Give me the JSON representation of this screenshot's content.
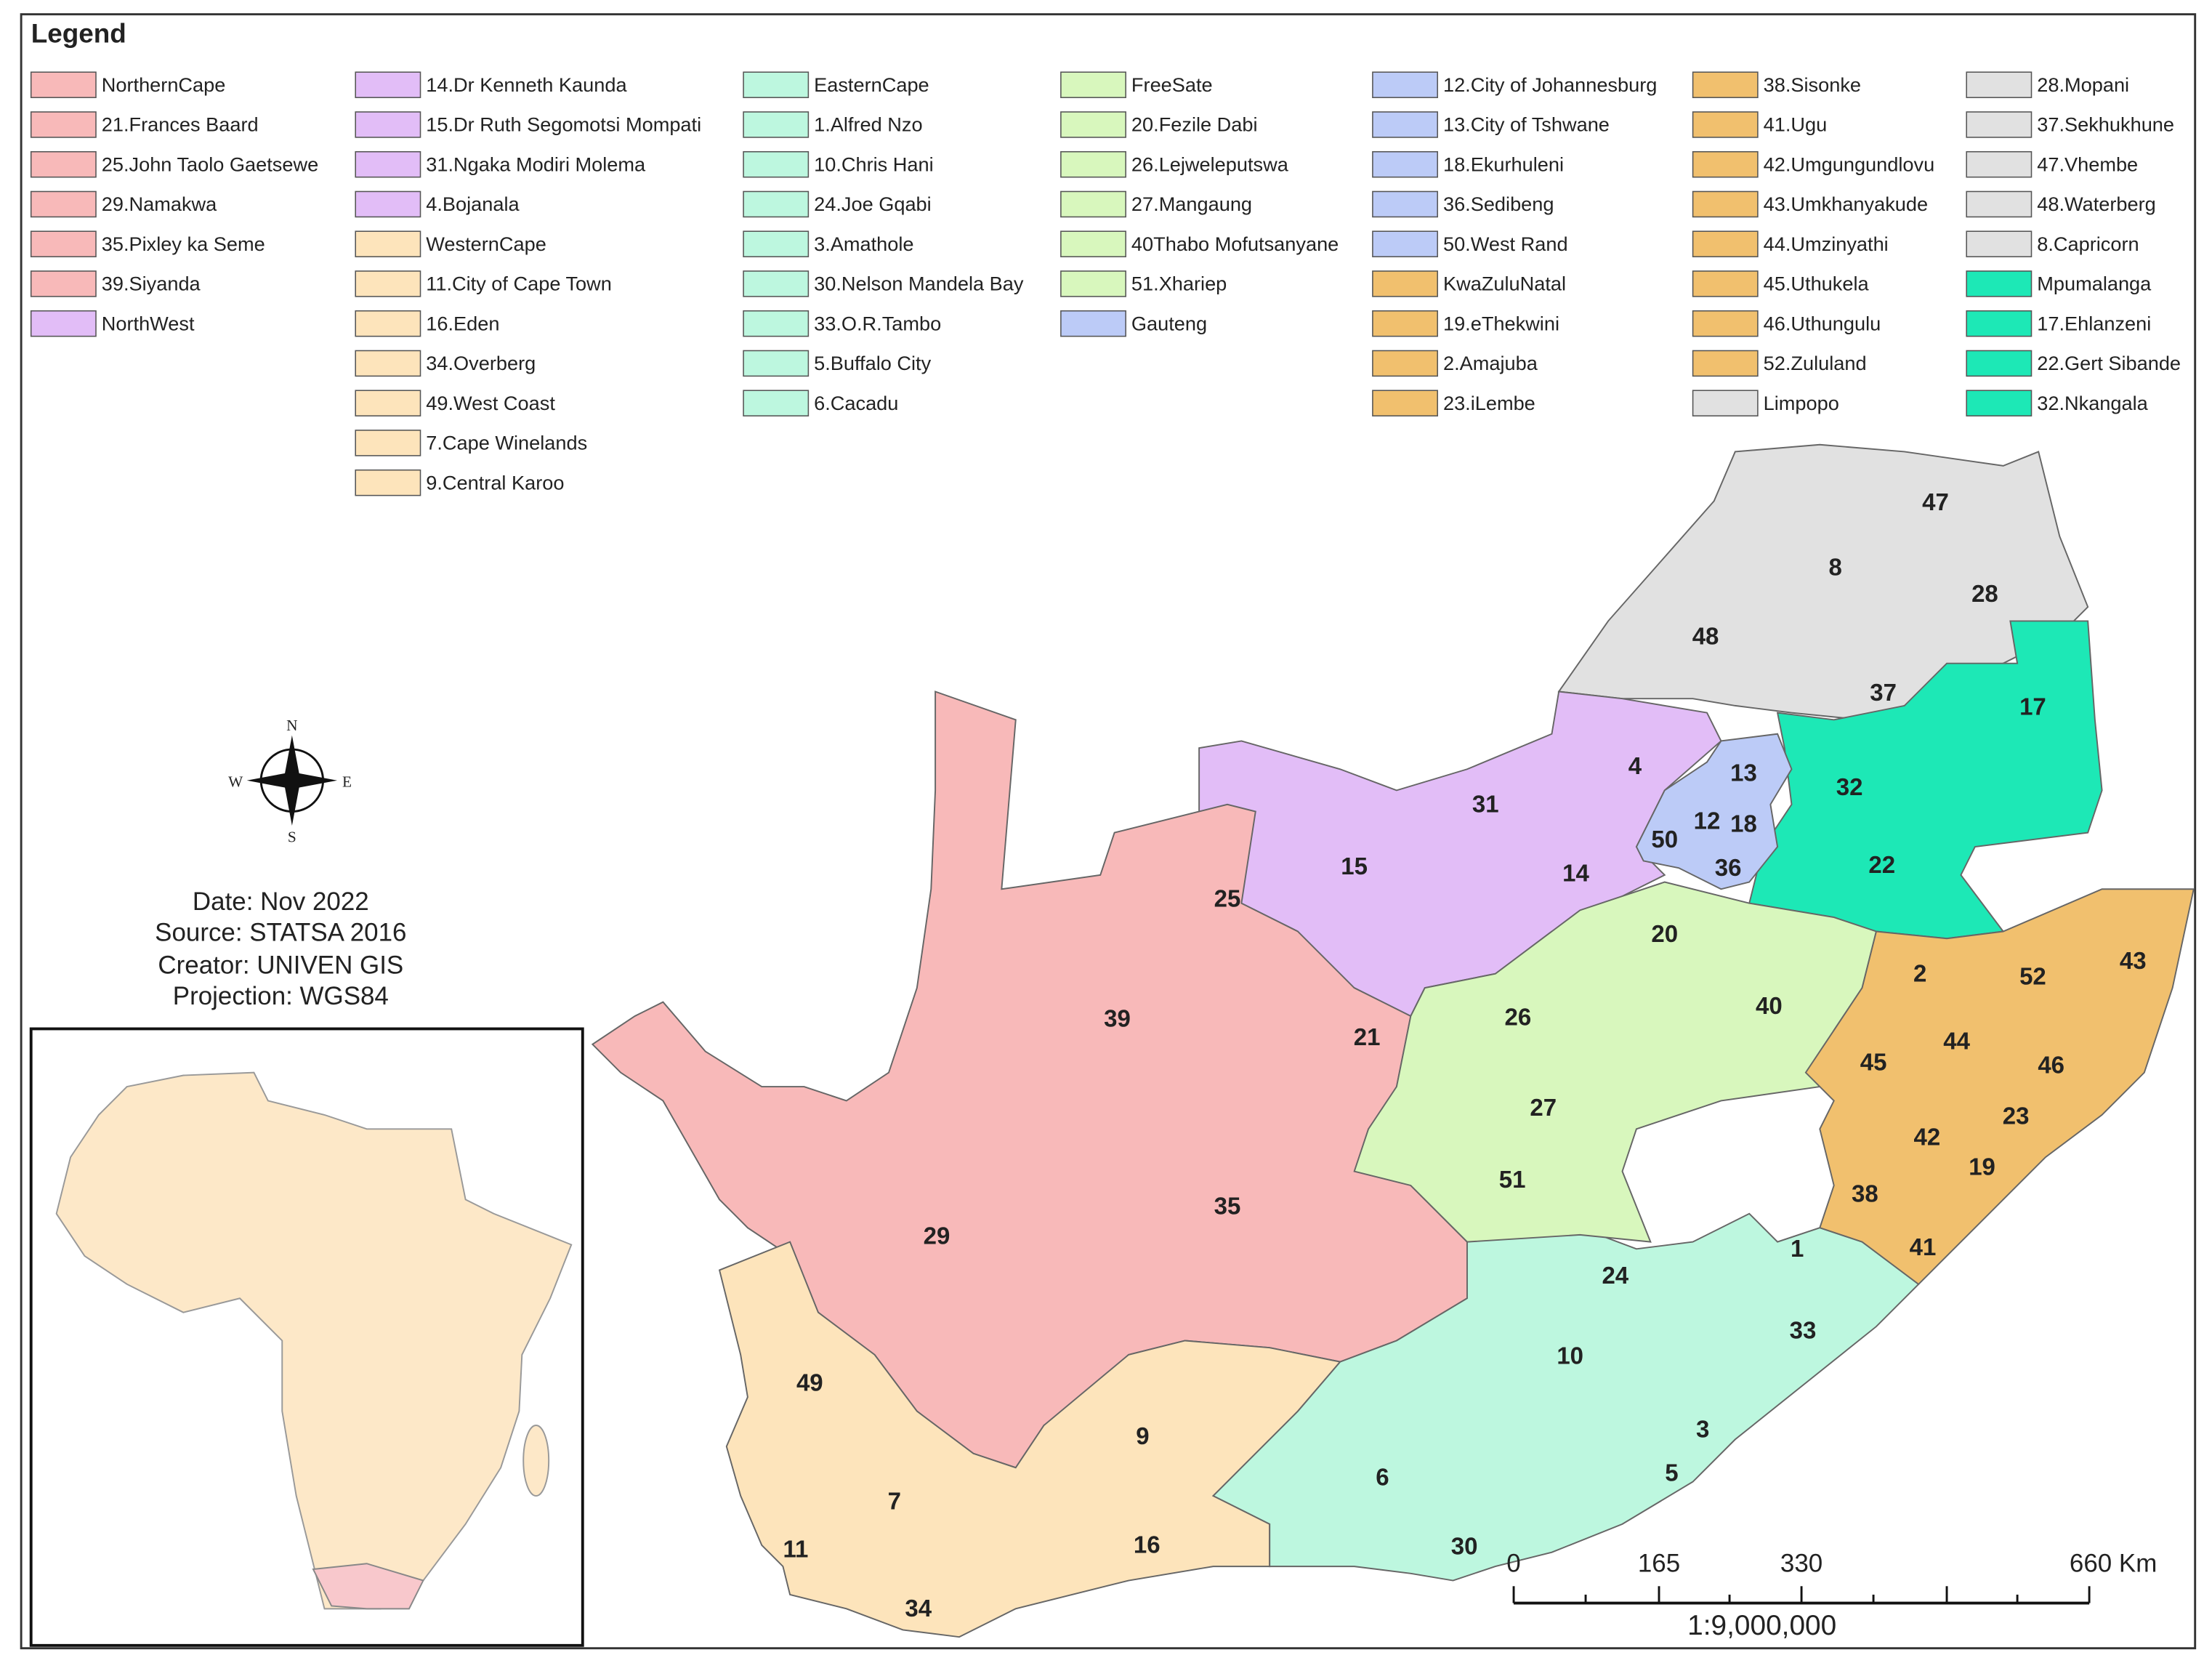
{
  "legend": {
    "title": "Legend",
    "columns": [
      [
        {
          "label": "NorthernCape",
          "color": "#f8b9b9"
        },
        {
          "label": "21.Frances Baard",
          "color": "#f8b9b9"
        },
        {
          "label": "25.John Taolo Gaetsewe",
          "color": "#f8b9b9"
        },
        {
          "label": "29.Namakwa",
          "color": "#f8b9b9"
        },
        {
          "label": "35.Pixley ka Seme",
          "color": "#f8b9b9"
        },
        {
          "label": "39.Siyanda",
          "color": "#f8b9b9"
        },
        {
          "label": "NorthWest",
          "color": "#e2bdf7"
        }
      ],
      [
        {
          "label": "14.Dr Kenneth Kaunda",
          "color": "#e2bdf7"
        },
        {
          "label": "15.Dr Ruth Segomotsi Mompati",
          "color": "#e2bdf7"
        },
        {
          "label": "31.Ngaka Modiri Molema",
          "color": "#e2bdf7"
        },
        {
          "label": "4.Bojanala",
          "color": "#e2bdf7"
        },
        {
          "label": "WesternCape",
          "color": "#fde4bb"
        },
        {
          "label": "11.City of Cape Town",
          "color": "#fde4bb"
        },
        {
          "label": "16.Eden",
          "color": "#fde4bb"
        },
        {
          "label": "34.Overberg",
          "color": "#fde4bb"
        },
        {
          "label": "49.West Coast",
          "color": "#fde4bb"
        },
        {
          "label": "7.Cape Winelands",
          "color": "#fde4bb"
        },
        {
          "label": "9.Central Karoo",
          "color": "#fde4bb"
        }
      ],
      [
        {
          "label": "EasternCape",
          "color": "#bdf7df"
        },
        {
          "label": "1.Alfred Nzo",
          "color": "#bdf7df"
        },
        {
          "label": "10.Chris Hani",
          "color": "#bdf7df"
        },
        {
          "label": "24.Joe Gqabi",
          "color": "#bdf7df"
        },
        {
          "label": "3.Amathole",
          "color": "#bdf7df"
        },
        {
          "label": "30.Nelson Mandela Bay",
          "color": "#bdf7df"
        },
        {
          "label": "33.O.R.Tambo",
          "color": "#bdf7df"
        },
        {
          "label": "5.Buffalo City",
          "color": "#bdf7df"
        },
        {
          "label": "6.Cacadu",
          "color": "#bdf7df"
        }
      ],
      [
        {
          "label": "FreeSate",
          "color": "#d8f7bd"
        },
        {
          "label": "20.Fezile Dabi",
          "color": "#d8f7bd"
        },
        {
          "label": "26.Lejweleputswa",
          "color": "#d8f7bd"
        },
        {
          "label": "27.Mangaung",
          "color": "#d8f7bd"
        },
        {
          "label": "40Thabo Mofutsanyane",
          "color": "#d8f7bd"
        },
        {
          "label": "51.Xhariep",
          "color": "#d8f7bd"
        },
        {
          "label": "Gauteng",
          "color": "#bccbf7"
        }
      ],
      [
        {
          "label": "12.City of Johannesburg",
          "color": "#bccbf7"
        },
        {
          "label": "13.City of Tshwane",
          "color": "#bccbf7"
        },
        {
          "label": "18.Ekurhuleni",
          "color": "#bccbf7"
        },
        {
          "label": "36.Sedibeng",
          "color": "#bccbf7"
        },
        {
          "label": "50.West Rand",
          "color": "#bccbf7"
        },
        {
          "label": "KwaZuluNatal",
          "color": "#f1c06e"
        },
        {
          "label": "19.eThekwini",
          "color": "#f1c06e"
        },
        {
          "label": "2.Amajuba",
          "color": "#f1c06e"
        },
        {
          "label": "23.iLembe",
          "color": "#f1c06e"
        }
      ],
      [
        {
          "label": "38.Sisonke",
          "color": "#f1c06e"
        },
        {
          "label": "41.Ugu",
          "color": "#f1c06e"
        },
        {
          "label": "42.Umgungundlovu",
          "color": "#f1c06e"
        },
        {
          "label": "43.Umkhanyakude",
          "color": "#f1c06e"
        },
        {
          "label": "44.Umzinyathi",
          "color": "#f1c06e"
        },
        {
          "label": "45.Uthukela",
          "color": "#f1c06e"
        },
        {
          "label": "46.Uthungulu",
          "color": "#f1c06e"
        },
        {
          "label": "52.Zululand",
          "color": "#f1c06e"
        },
        {
          "label": "Limpopo",
          "color": "#e1e1e1"
        }
      ],
      [
        {
          "label": "28.Mopani",
          "color": "#e1e1e1"
        },
        {
          "label": "37.Sekhukhune",
          "color": "#e1e1e1"
        },
        {
          "label": "47.Vhembe",
          "color": "#e1e1e1"
        },
        {
          "label": "48.Waterberg",
          "color": "#e1e1e1"
        },
        {
          "label": "8.Capricorn",
          "color": "#e1e1e1"
        },
        {
          "label": "Mpumalanga",
          "color": "#1de8b6"
        },
        {
          "label": "17.Ehlanzeni",
          "color": "#1de8b6"
        },
        {
          "label": "22.Gert Sibande",
          "color": "#1de8b6"
        },
        {
          "label": "32.Nkangala",
          "color": "#1de8b6"
        }
      ]
    ]
  },
  "compass": {
    "n": "N",
    "s": "S",
    "e": "E",
    "w": "W"
  },
  "info": [
    "Date: Nov 2022",
    "Source: STATSA 2016",
    "Creator: UNIVEN GIS",
    "Projection: WGS84"
  ],
  "map": {
    "labels": [
      "47",
      "8",
      "28",
      "48",
      "37",
      "17",
      "13",
      "4",
      "31",
      "32",
      "12",
      "18",
      "50",
      "36",
      "22",
      "15",
      "14",
      "25",
      "20",
      "43",
      "2",
      "52",
      "39",
      "21",
      "26",
      "40",
      "44",
      "45",
      "46",
      "27",
      "23",
      "42",
      "19",
      "51",
      "38",
      "35",
      "29",
      "1",
      "41",
      "24",
      "33",
      "10",
      "49",
      "9",
      "3",
      "5",
      "6",
      "7",
      "16",
      "30",
      "11",
      "34"
    ]
  },
  "scale_bar": {
    "ticks": [
      "0",
      "165",
      "330",
      "660 Km"
    ],
    "ratio": "1:9,000,000"
  }
}
